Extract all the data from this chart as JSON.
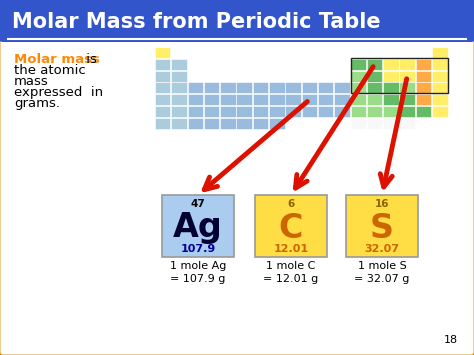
{
  "title": "Molar Mass from Periodic Table",
  "title_bg_color": "#3355cc",
  "title_text_color": "#ffffff",
  "slide_bg_color": "#ffffff",
  "border_color": "#dd8800",
  "body_bg_color": "#ffffff",
  "molar_mass_orange": "#ff8800",
  "elements": [
    {
      "symbol": "Ag",
      "atomic_num": "47",
      "mass": "107.9",
      "bg_color": "#aaccee",
      "num_color": "#000000",
      "sym_color": "#000033",
      "mass_color": "#000099"
    },
    {
      "symbol": "C",
      "atomic_num": "6",
      "mass": "12.01",
      "bg_color": "#ffdd44",
      "num_color": "#886600",
      "sym_color": "#cc6600",
      "mass_color": "#cc6600"
    },
    {
      "symbol": "S",
      "atomic_num": "16",
      "mass": "32.07",
      "bg_color": "#ffdd44",
      "num_color": "#886600",
      "sym_color": "#cc6600",
      "mass_color": "#cc6600"
    }
  ],
  "mole_labels": [
    "1 mole Ag\n= 107.9 g",
    "1 mole C\n= 12.01 g",
    "1 mole S\n= 32.07 g"
  ],
  "page_number": "18",
  "arrow_color": "#dd1100",
  "pt_cell_colors": {
    "yellow": "#ffee66",
    "blue": "#99bbdd",
    "light_blue": "#aaccdd",
    "green": "#66bb66",
    "light_green": "#99dd88",
    "orange": "#ffaa44",
    "white": "#f8f8f8"
  }
}
